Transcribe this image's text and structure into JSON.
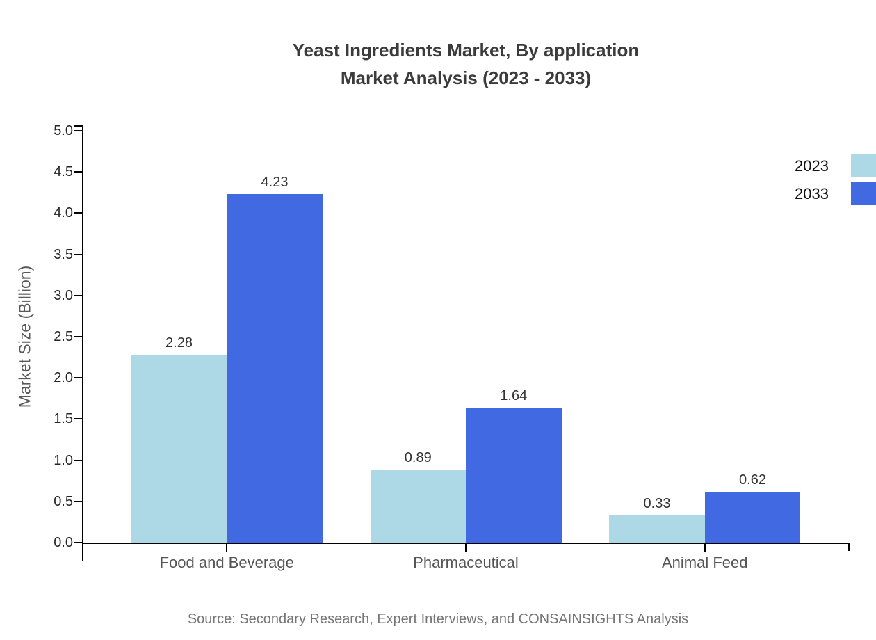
{
  "chart_data": {
    "type": "bar",
    "title_lines": [
      "Yeast Ingredients Market, By application",
      "Market Analysis (2023 - 2033)"
    ],
    "categories": [
      "Food and Beverage",
      "Pharmaceutical",
      "Animal Feed"
    ],
    "series": [
      {
        "name": "2023",
        "color": "#ADD8E6",
        "values": [
          2.28,
          0.89,
          0.33
        ]
      },
      {
        "name": "2033",
        "color": "#4169E1",
        "values": [
          4.23,
          1.64,
          0.62
        ]
      }
    ],
    "ylabel": "Market Size (Billion)",
    "xlabel": "",
    "ylim": [
      0,
      5
    ],
    "ytick_labels": [
      "0.0",
      "0.5",
      "1.0",
      "1.5",
      "2.0",
      "2.5",
      "3.0",
      "3.5",
      "4.0",
      "4.5",
      "5.0"
    ],
    "grid": false,
    "legend_position": "top-right",
    "value_labels_shown": true,
    "source_note": "Source: Secondary Research, Expert Interviews, and CONSAINSIGHTS Analysis"
  },
  "colors": {
    "series_2023": "#ADD8E6",
    "series_2033": "#4169E1",
    "axis": "#000000",
    "tick_label": "#262626",
    "category_label": "#555555",
    "axis_title": "#595959",
    "value_label": "#333333",
    "title": "#3b3b3b",
    "source": "#757575",
    "background": "#ffffff"
  }
}
